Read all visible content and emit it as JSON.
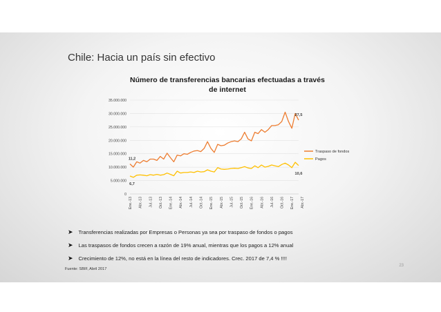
{
  "slide": {
    "title": "Chile: Hacia un país sin efectivo",
    "bullets": [
      "Transferencias realizadas por Empresas o Personas ya sea por traspaso de fondos o pagos",
      "Las traspasos de fondos crecen a razón de 19% anual, mientras que los pagos a 12% anual",
      "Crecimiento de 12%, no está en la línea del resto de indicadores. Crec. 2017 de 7,4 % !!!!"
    ],
    "source": "Fuente: SBIF, Abril 2017",
    "page_number": "23"
  },
  "chart_data": {
    "type": "line",
    "title": "Número de transferencias bancarias efectuadas a través de internet",
    "title_lines": [
      "Número de transferencias bancarias efectuadas a través",
      "de internet"
    ],
    "ylim": [
      0,
      35000000
    ],
    "y_ticks": [
      0,
      5000000,
      10000000,
      15000000,
      20000000,
      25000000,
      30000000,
      35000000
    ],
    "y_tick_labels": [
      "0",
      "5.000.000",
      "10.000.000",
      "15.000.000",
      "20.000.000",
      "25.000.000",
      "30.000.000",
      "35.000.000"
    ],
    "x_tick_labels": [
      "Ene.-13",
      "Abr.-13",
      "Jul.-13",
      "Oct.-13",
      "Ene.-14",
      "Abr.-14",
      "Jul.-14",
      "Oct.-14",
      "Ene.-15",
      "Abr.-15",
      "Jul.-15",
      "Oct.-15",
      "Ene.-16",
      "Abr.-16",
      "Jul.-16",
      "Oct.-16",
      "Ene.-17",
      "Abr.-17"
    ],
    "legend_position": "right",
    "series": [
      {
        "name": "Traspaso de fondos",
        "color": "#ED7D31",
        "values": [
          11200000,
          10000000,
          12000000,
          11500000,
          12500000,
          12000000,
          13000000,
          13000000,
          12500000,
          14000000,
          13000000,
          15200000,
          13500000,
          12000000,
          14500000,
          14200000,
          15000000,
          14800000,
          15500000,
          16000000,
          16200000,
          15800000,
          17000000,
          19500000,
          17000000,
          15500000,
          18500000,
          18000000,
          18200000,
          19000000,
          19500000,
          19800000,
          19500000,
          20500000,
          23000000,
          20500000,
          19800000,
          23000000,
          22500000,
          24000000,
          23000000,
          24000000,
          25500000,
          25500000,
          25800000,
          27000000,
          30500000,
          27000000,
          24500000,
          30000000,
          27500000
        ],
        "labels": [
          {
            "index": 0,
            "text": "11,2"
          },
          {
            "index": 50,
            "text": "27,5"
          }
        ]
      },
      {
        "name": "Pagos",
        "color": "#FFC000",
        "values": [
          6700000,
          6200000,
          7000000,
          7100000,
          7000000,
          6800000,
          7200000,
          7000000,
          7300000,
          7000000,
          7200000,
          7800000,
          7300000,
          6800000,
          8500000,
          7800000,
          8000000,
          8000000,
          8200000,
          8000000,
          8500000,
          8200000,
          8300000,
          9000000,
          8500000,
          8200000,
          9800000,
          9300000,
          9200000,
          9300000,
          9500000,
          9600000,
          9500000,
          9800000,
          10200000,
          9700000,
          9500000,
          10500000,
          9800000,
          10800000,
          10000000,
          10300000,
          10800000,
          10500000,
          10200000,
          11000000,
          11500000,
          10800000,
          9800000,
          11800000,
          10600000
        ],
        "labels": [
          {
            "index": 0,
            "text": "6,7"
          },
          {
            "index": 50,
            "text": "10,6"
          }
        ]
      }
    ]
  }
}
